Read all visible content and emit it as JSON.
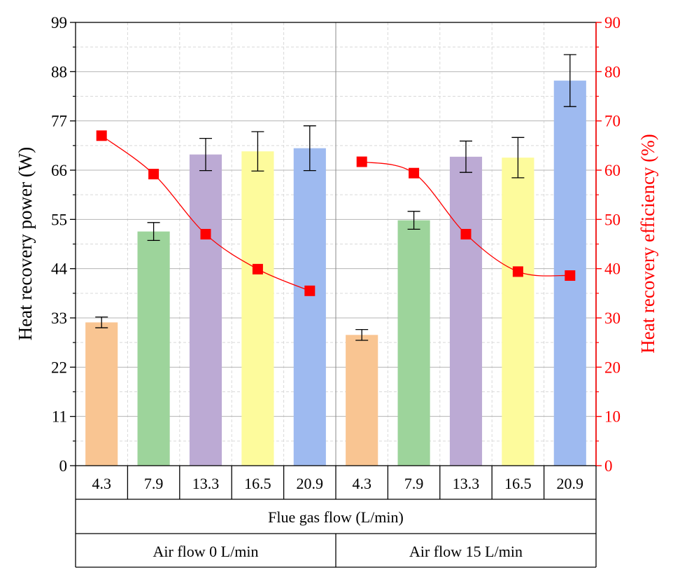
{
  "chart_data": {
    "type": "bar+line",
    "title": "",
    "ylabel_left": "Heat recovery power (W)",
    "ylabel_right": "Heat recovery efficiency (%)",
    "ylim_left": [
      0,
      99
    ],
    "yticks_left": [
      0,
      11,
      22,
      33,
      44,
      55,
      66,
      77,
      88,
      99
    ],
    "ylim_right": [
      0,
      90
    ],
    "yticks_right": [
      0,
      10,
      20,
      30,
      40,
      50,
      60,
      70,
      80,
      90
    ],
    "grid": true,
    "x_level1_labels": [
      "4.3",
      "7.9",
      "13.3",
      "16.5",
      "20.9",
      "4.3",
      "7.9",
      "13.3",
      "16.5",
      "20.9"
    ],
    "x_level2_label": "Flue gas flow (L/min)",
    "groups": [
      {
        "label": "Air flow 0 L/min",
        "indices": [
          0,
          1,
          2,
          3,
          4
        ]
      },
      {
        "label": "Air flow 15 L/min",
        "indices": [
          5,
          6,
          7,
          8,
          9
        ]
      }
    ],
    "bars": {
      "name": "Heat recovery power",
      "values": [
        32.0,
        52.3,
        69.5,
        70.2,
        70.9,
        29.2,
        54.8,
        69.0,
        68.8,
        86.0
      ],
      "errors": [
        1.2,
        2.0,
        3.6,
        4.4,
        5.0,
        1.2,
        2.0,
        3.5,
        4.5,
        5.8
      ],
      "colors": [
        "#f9c592",
        "#9dd49b",
        "#bcaad4",
        "#fdfb9c",
        "#9ebaf0",
        "#f9c592",
        "#9dd49b",
        "#bcaad4",
        "#fdfb9c",
        "#9ebaf0"
      ]
    },
    "series": [
      {
        "name": "Heat recovery efficiency (Air flow 0 L/min)",
        "indices": [
          0,
          1,
          2,
          3,
          4
        ],
        "values": [
          67.0,
          59.2,
          47.0,
          39.9,
          35.5
        ],
        "color": "#ff0000",
        "marker": "square"
      },
      {
        "name": "Heat recovery efficiency (Air flow 15 L/min)",
        "indices": [
          5,
          6,
          7,
          8,
          9
        ],
        "values": [
          61.7,
          59.4,
          47.0,
          39.4,
          38.6
        ],
        "color": "#ff0000",
        "marker": "square"
      }
    ]
  }
}
